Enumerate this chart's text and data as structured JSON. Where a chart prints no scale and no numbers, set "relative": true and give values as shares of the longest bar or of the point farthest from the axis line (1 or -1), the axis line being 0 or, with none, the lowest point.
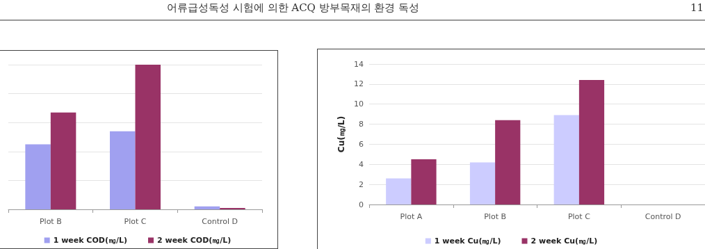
{
  "chart_data": [
    {
      "type": "bar",
      "relative": true,
      "categories": [
        "Plot B",
        "Plot C",
        "Control D"
      ],
      "series": [
        {
          "name": "1 week COD(㎎/L)",
          "color": "#a0a0f0",
          "values": [
            0.45,
            0.54,
            0.02
          ]
        },
        {
          "name": "2 week COD(㎎/L)",
          "color": "#993366",
          "values": [
            0.67,
            1,
            0.01
          ]
        }
      ],
      "grid": "y",
      "legend": "bottom",
      "annotations": [
        "어류급성독성 시험에 의한 ACQ 방부목재의 환경 독성",
        "11"
      ]
    },
    {
      "type": "bar",
      "categories": [
        "Plot A",
        "Plot B",
        "Plot C",
        "Control D"
      ],
      "series": [
        {
          "name": "1 week Cu(㎎/L)",
          "color": "#ccccff",
          "values": [
            2.6,
            4.2,
            8.9,
            0
          ]
        },
        {
          "name": "2 week Cu(㎎/L)",
          "color": "#993366",
          "values": [
            4.5,
            8.4,
            12.4,
            0
          ]
        }
      ],
      "ylabel": "Cu(㎎/L)",
      "ylim": [
        0,
        14
      ],
      "yticks": [
        0,
        2,
        4,
        6,
        8,
        10,
        12,
        14
      ],
      "grid": "y",
      "legend": "bottom"
    }
  ]
}
